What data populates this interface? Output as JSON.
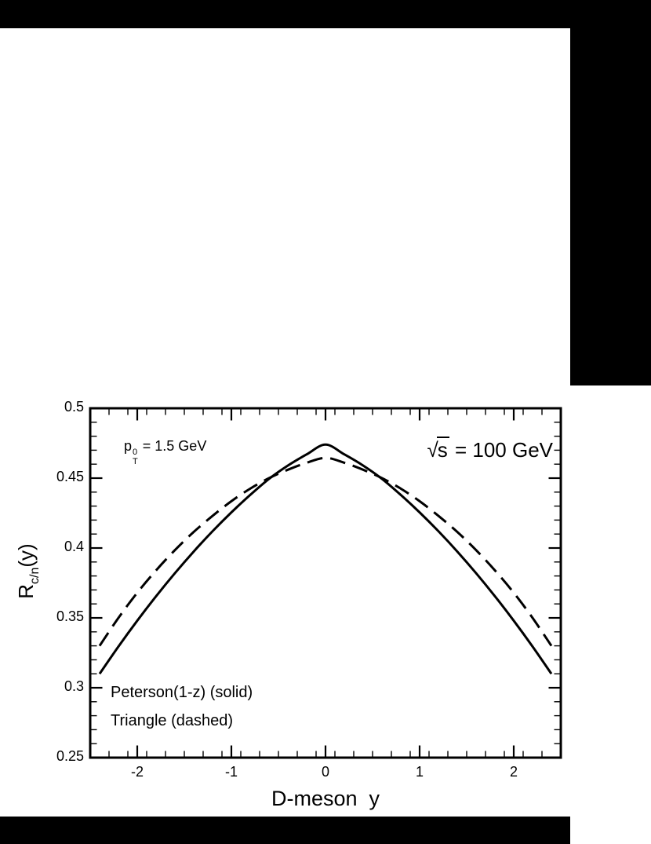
{
  "chart_data": {
    "type": "line",
    "title": "",
    "xlabel": "D-meson  y",
    "ylabel": "R_c/n(y)",
    "ylabel_parts": {
      "base": "R",
      "sub": "c/n",
      "rest": "(y)"
    },
    "xlim": [
      -2.5,
      2.5
    ],
    "ylim": [
      0.25,
      0.5
    ],
    "x_major_ticks": [
      -2,
      -1,
      0,
      1,
      2
    ],
    "x_tick_labels": [
      "-2",
      "-1",
      "0",
      "1",
      "2"
    ],
    "x_minor_step": 0.2,
    "y_major_ticks": [
      0.25,
      0.3,
      0.35,
      0.4,
      0.45,
      0.5
    ],
    "y_tick_labels": [
      "0.25",
      "0.3",
      "0.35",
      "0.4",
      "0.45",
      "0.5"
    ],
    "y_minor_step": 0.01,
    "grid": false,
    "legend_position": "bottom-left-inside",
    "annotations": {
      "pt": {
        "base": "p",
        "sup": "0",
        "sub": "T",
        "rest": " = 1.5 GeV"
      },
      "sqrts": {
        "radical": "√",
        "under": "s",
        "rest": " = 100 GeV"
      }
    },
    "legend": [
      "Peterson(1-z) (solid)",
      "Triangle (dashed)"
    ],
    "colors": {
      "line": "#000000",
      "background": "#ffffff"
    },
    "series": [
      {
        "name": "Peterson(1-z) (solid)",
        "style": "solid",
        "x": [
          -2.4,
          -2.2,
          -2.0,
          -1.8,
          -1.6,
          -1.4,
          -1.2,
          -1.0,
          -0.8,
          -0.6,
          -0.4,
          -0.2,
          0.0,
          0.2,
          0.4,
          0.6,
          0.8,
          1.0,
          1.2,
          1.4,
          1.6,
          1.8,
          2.0,
          2.2,
          2.4
        ],
        "y": [
          0.31,
          0.3295,
          0.348,
          0.3655,
          0.382,
          0.3975,
          0.412,
          0.4255,
          0.438,
          0.4495,
          0.459,
          0.467,
          0.474,
          0.467,
          0.459,
          0.4495,
          0.438,
          0.4255,
          0.412,
          0.3975,
          0.382,
          0.3655,
          0.348,
          0.3295,
          0.31
        ]
      },
      {
        "name": "Triangle (dashed)",
        "style": "dashed",
        "x": [
          -2.4,
          -2.2,
          -2.0,
          -1.8,
          -1.6,
          -1.4,
          -1.2,
          -1.0,
          -0.8,
          -0.6,
          -0.4,
          -0.2,
          0.0,
          0.2,
          0.4,
          0.6,
          0.8,
          1.0,
          1.2,
          1.4,
          1.6,
          1.8,
          2.0,
          2.2,
          2.4
        ],
        "y": [
          0.33,
          0.35,
          0.368,
          0.384,
          0.3985,
          0.4115,
          0.423,
          0.4335,
          0.4425,
          0.45,
          0.456,
          0.461,
          0.4645,
          0.461,
          0.456,
          0.45,
          0.4425,
          0.4335,
          0.423,
          0.4115,
          0.3985,
          0.384,
          0.368,
          0.35,
          0.33
        ]
      }
    ]
  }
}
